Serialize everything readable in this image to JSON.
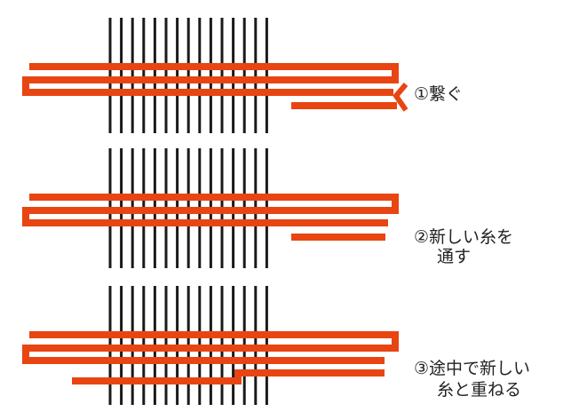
{
  "colors": {
    "warp": "#1a1a1a",
    "thread": "#e84512",
    "background": "#ffffff"
  },
  "steps": {
    "step1": "①繋ぐ",
    "step2_line1": "②新しい糸を",
    "step2_line2": "通す",
    "step3_line1": "③途中で新しい",
    "step3_line2": "糸と重ねる"
  }
}
